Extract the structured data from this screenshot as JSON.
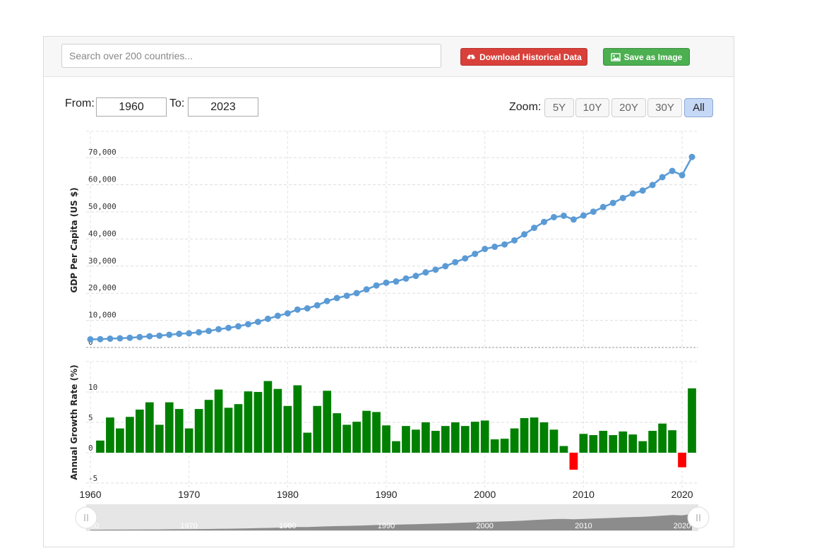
{
  "toolbar": {
    "search_placeholder": "Search over 200 countries...",
    "download_label": "Download Historical Data",
    "save_label": "Save as Image",
    "download_icon": "cloud-download-icon",
    "save_icon": "image-icon",
    "download_color": "#d9403a",
    "save_color": "#4caf50"
  },
  "range": {
    "from_label": "From:",
    "from_value": "1960",
    "to_label": "To:",
    "to_value": "2023"
  },
  "zoom": {
    "label": "Zoom:",
    "options": [
      "5Y",
      "10Y",
      "20Y",
      "30Y",
      "All"
    ],
    "selected": "All"
  },
  "chart_data": [
    {
      "type": "line",
      "title": "",
      "ylabel": "GDP Per Capita (US $)",
      "xlabel": "",
      "x_range": [
        1960,
        2021
      ],
      "ylim": [
        0,
        80000
      ],
      "y_ticks": [
        "0",
        "10,000",
        "20,000",
        "30,000",
        "40,000",
        "50,000",
        "60,000",
        "70,000"
      ],
      "grid": true,
      "color": "#5b9bd5",
      "x": [
        1960,
        1961,
        1962,
        1963,
        1964,
        1965,
        1966,
        1967,
        1968,
        1969,
        1970,
        1971,
        1972,
        1973,
        1974,
        1975,
        1976,
        1977,
        1978,
        1979,
        1980,
        1981,
        1982,
        1983,
        1984,
        1985,
        1986,
        1987,
        1988,
        1989,
        1990,
        1991,
        1992,
        1993,
        1994,
        1995,
        1996,
        1997,
        1998,
        1999,
        2000,
        2001,
        2002,
        2003,
        2004,
        2005,
        2006,
        2007,
        2008,
        2009,
        2010,
        2011,
        2012,
        2013,
        2014,
        2015,
        2016,
        2017,
        2018,
        2019,
        2020,
        2021
      ],
      "values": [
        3007,
        3067,
        3244,
        3375,
        3574,
        3828,
        4146,
        4336,
        4696,
        5032,
        5234,
        5609,
        6094,
        6726,
        7226,
        7801,
        8592,
        9453,
        10565,
        11674,
        12575,
        13976,
        14434,
        15544,
        17121,
        18237,
        19071,
        20039,
        21417,
        22857,
        23889,
        24342,
        25419,
        26387,
        27695,
        28691,
        29968,
        31459,
        32854,
        34515,
        36330,
        37134,
        37998,
        39490,
        41725,
        44123,
        46302,
        48050,
        48570,
        47195,
        48651,
        50066,
        51784,
        53291,
        55124,
        56763,
        57867,
        59915,
        62805,
        65095,
        63531,
        70249
      ]
    },
    {
      "type": "bar",
      "title": "",
      "ylabel": "Annual Growth Rate (%)",
      "xlabel": "",
      "x_range": [
        1960,
        2021
      ],
      "ylim": [
        -5,
        15
      ],
      "y_ticks": [
        "-5",
        "0",
        "5",
        "10"
      ],
      "x_ticks": [
        "1960",
        "1970",
        "1980",
        "1990",
        "2000",
        "2010",
        "2020"
      ],
      "grid": true,
      "positive_color": "#008000",
      "negative_color": "#ff0000",
      "x": [
        1961,
        1962,
        1963,
        1964,
        1965,
        1966,
        1967,
        1968,
        1969,
        1970,
        1971,
        1972,
        1973,
        1974,
        1975,
        1976,
        1977,
        1978,
        1979,
        1980,
        1981,
        1982,
        1983,
        1984,
        1985,
        1986,
        1987,
        1988,
        1989,
        1990,
        1991,
        1992,
        1993,
        1994,
        1995,
        1996,
        1997,
        1998,
        1999,
        2000,
        2001,
        2002,
        2003,
        2004,
        2005,
        2006,
        2007,
        2008,
        2009,
        2010,
        2011,
        2012,
        2013,
        2014,
        2015,
        2016,
        2017,
        2018,
        2019,
        2020,
        2021
      ],
      "values": [
        2.0,
        5.8,
        4.0,
        5.9,
        7.1,
        8.3,
        4.6,
        8.3,
        7.2,
        4.0,
        7.2,
        8.7,
        10.4,
        7.4,
        8.0,
        10.1,
        10.0,
        11.8,
        10.5,
        7.7,
        11.1,
        3.3,
        7.7,
        10.2,
        6.5,
        4.6,
        5.1,
        6.9,
        6.7,
        4.5,
        1.9,
        4.4,
        3.8,
        5.0,
        3.6,
        4.4,
        5.0,
        4.4,
        5.1,
        5.3,
        2.2,
        2.3,
        4.0,
        5.7,
        5.8,
        5.0,
        3.8,
        1.1,
        -2.8,
        3.1,
        2.9,
        3.6,
        2.9,
        3.5,
        3.0,
        1.9,
        3.6,
        4.8,
        3.7,
        -2.4,
        10.6
      ]
    }
  ],
  "navigator": {
    "x_ticks": [
      "1960",
      "1970",
      "1980",
      "1990",
      "2000",
      "2010",
      "2020"
    ],
    "handle_icon": "grip-handle-icon"
  }
}
